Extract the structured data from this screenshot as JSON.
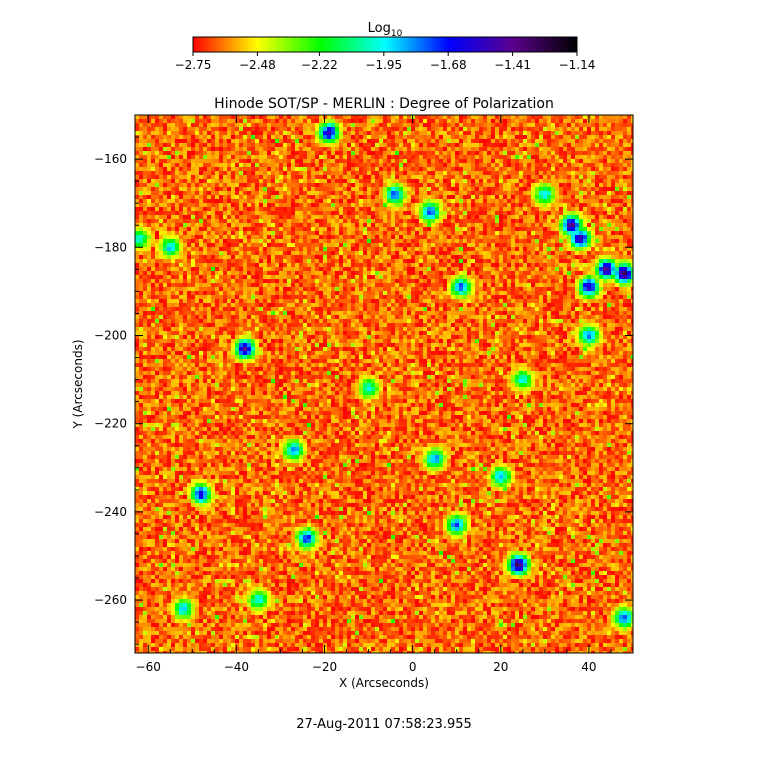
{
  "chart_data": {
    "type": "heatmap",
    "title": "Hinode SOT/SP - MERLIN : Degree of Polarization",
    "xlabel": "X (Arcseconds)",
    "ylabel": "Y (Arcseconds)",
    "xlim": [
      -63,
      50
    ],
    "ylim": [
      -272,
      -150
    ],
    "x_ticks": [
      -60,
      -40,
      -20,
      0,
      20,
      40
    ],
    "y_ticks": [
      -160,
      -180,
      -200,
      -220,
      -240,
      -260
    ],
    "x_tick_labels": [
      "−60",
      "−40",
      "−20",
      "0",
      "20",
      "40"
    ],
    "y_tick_labels": [
      "−160",
      "−180",
      "−200",
      "−220",
      "−240",
      "−260"
    ],
    "colorbar": {
      "label_main": "Log",
      "label_sub": "10",
      "min": -2.75,
      "max": -1.14,
      "ticks": [
        -2.75,
        -2.48,
        -2.22,
        -1.95,
        -1.68,
        -1.41,
        -1.14
      ],
      "tick_labels": [
        "−2.75",
        "−2.48",
        "−2.22",
        "−1.95",
        "−1.68",
        "−1.41",
        "−1.14"
      ],
      "colormap": "rainbow (red → yellow → green → cyan → blue → purple → black)",
      "colors": [
        "#ff0000",
        "#ffff00",
        "#00ff00",
        "#00ffff",
        "#0000ff",
        "#5a008c",
        "#000000"
      ]
    },
    "background_level": -2.64,
    "features": [
      {
        "x": 36,
        "y": -175,
        "value": -1.4
      },
      {
        "x": 38,
        "y": -178,
        "value": -1.45
      },
      {
        "x": 44,
        "y": -185,
        "value": -1.4
      },
      {
        "x": 48,
        "y": -186,
        "value": -1.3
      },
      {
        "x": 40,
        "y": -189,
        "value": -1.5
      },
      {
        "x": 24,
        "y": -252,
        "value": -1.35
      },
      {
        "x": -38,
        "y": -203,
        "value": -1.45
      },
      {
        "x": -19,
        "y": -154,
        "value": -1.5
      },
      {
        "x": -24,
        "y": -246,
        "value": -1.7
      },
      {
        "x": -48,
        "y": -236,
        "value": -1.6
      },
      {
        "x": -27,
        "y": -226,
        "value": -1.8
      },
      {
        "x": 11,
        "y": -189,
        "value": -1.75
      },
      {
        "x": -4,
        "y": -168,
        "value": -1.75
      },
      {
        "x": 4,
        "y": -172,
        "value": -1.7
      },
      {
        "x": -55,
        "y": -180,
        "value": -1.9
      },
      {
        "x": 20,
        "y": -232,
        "value": -1.85
      },
      {
        "x": 5,
        "y": -228,
        "value": -1.8
      },
      {
        "x": 10,
        "y": -243,
        "value": -1.75
      },
      {
        "x": -52,
        "y": -262,
        "value": -1.9
      },
      {
        "x": -35,
        "y": -260,
        "value": -1.95
      },
      {
        "x": 25,
        "y": -210,
        "value": -1.95
      },
      {
        "x": 40,
        "y": -200,
        "value": -1.8
      },
      {
        "x": -10,
        "y": -212,
        "value": -1.95
      },
      {
        "x": 30,
        "y": -168,
        "value": -1.9
      },
      {
        "x": 48,
        "y": -264,
        "value": -1.75
      },
      {
        "x": -62,
        "y": -178,
        "value": -1.95
      }
    ]
  },
  "timestamp": "27-Aug-2011 07:58:23.955"
}
